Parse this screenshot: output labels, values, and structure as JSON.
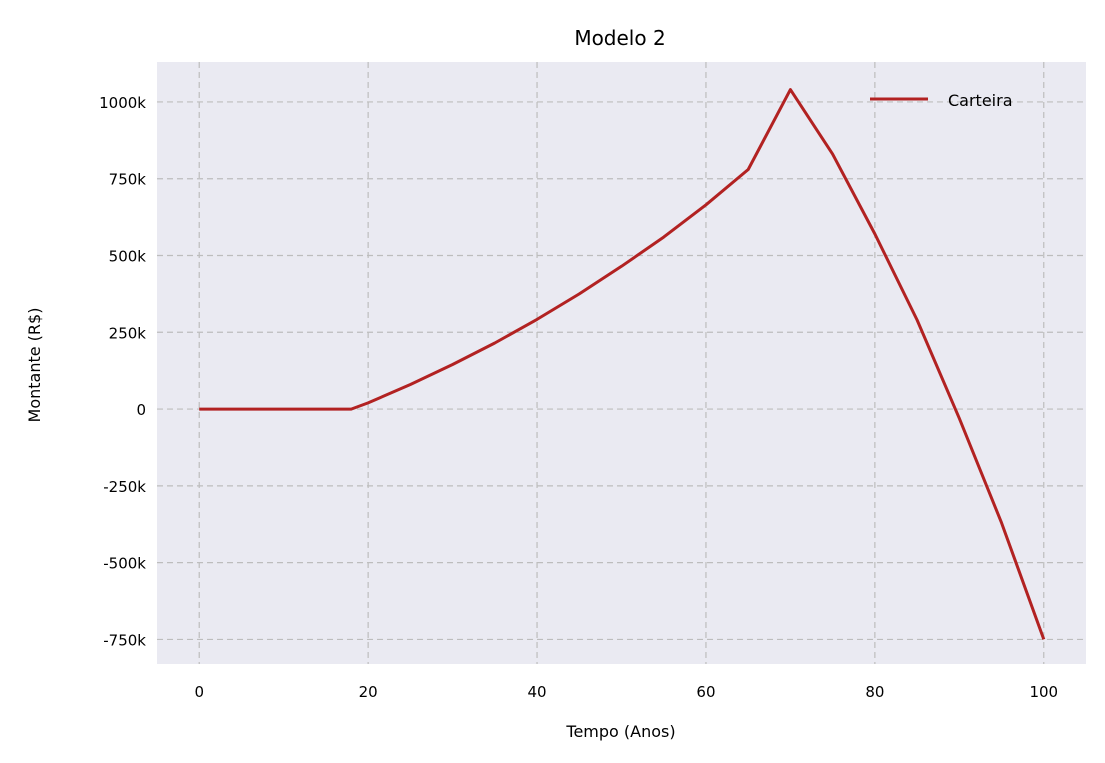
{
  "chart_data": {
    "type": "line",
    "title": "Modelo 2",
    "xlabel": "Tempo (Anos)",
    "ylabel": "Montante (R$)",
    "xlim": [
      -5,
      105
    ],
    "ylim": [
      -830000,
      1130000
    ],
    "x_ticks": [
      0,
      20,
      40,
      60,
      80,
      100
    ],
    "x_tick_labels": [
      "0",
      "20",
      "40",
      "60",
      "80",
      "100"
    ],
    "y_ticks": [
      1000000,
      750000,
      500000,
      250000,
      0,
      -250000,
      -500000,
      -750000
    ],
    "y_tick_labels": [
      "1000k",
      "750k",
      "500k",
      "250k",
      "0",
      "-250k",
      "-500k",
      "-750k"
    ],
    "grid": true,
    "legend_position": "top-right",
    "background": "#eaeaf2",
    "series": [
      {
        "name": "Carteira",
        "color": "#b22222",
        "x": [
          0,
          18,
          20,
          25,
          30,
          35,
          40,
          45,
          50,
          55,
          60,
          65,
          70,
          75,
          80,
          85,
          90,
          95,
          100
        ],
        "y": [
          0,
          0,
          20000,
          80000,
          145000,
          215000,
          292000,
          375000,
          465000,
          560000,
          665000,
          780000,
          1040000,
          830000,
          570000,
          290000,
          -30000,
          -370000,
          -750000
        ]
      }
    ]
  }
}
